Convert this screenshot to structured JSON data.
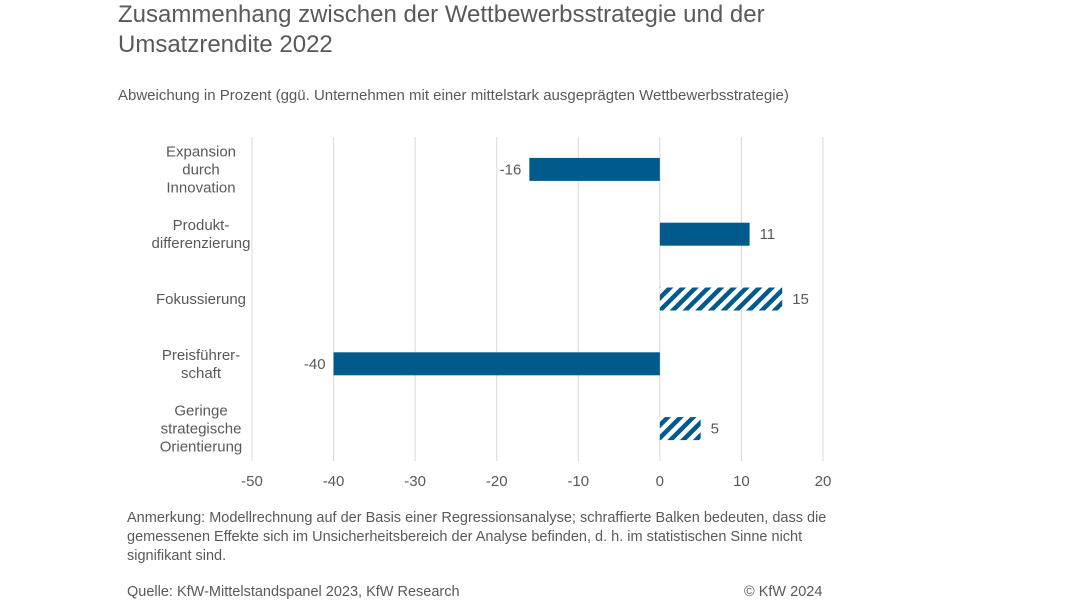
{
  "chart_data": {
    "type": "bar",
    "orientation": "horizontal",
    "title": "Zusammenhang zwischen der Wettbewerbsstrategie und der Umsatzrendite 2022",
    "subtitle": "Abweichung in Prozent (ggü. Unternehmen mit einer mittelstark ausgeprägten Wettbewerbsstrategie)",
    "categories": [
      [
        "Expansion",
        "durch",
        "Innovation"
      ],
      [
        "Produkt-",
        "differenzierung"
      ],
      [
        "Fokussierung"
      ],
      [
        "Preisführer-",
        "schaft"
      ],
      [
        "Geringe",
        "strategische",
        "Orientierung"
      ]
    ],
    "values": [
      -16,
      11,
      15,
      -40,
      5
    ],
    "value_labels": [
      "-16",
      "11",
      "15",
      "-40",
      "5"
    ],
    "significant": [
      true,
      true,
      false,
      true,
      false
    ],
    "xlim": [
      -50,
      20
    ],
    "xticks": [
      -50,
      -40,
      -30,
      -20,
      -10,
      0,
      10,
      20
    ],
    "xtick_labels": [
      "-50",
      "-40",
      "-30",
      "-20",
      "-10",
      "0",
      "10",
      "20"
    ],
    "grid": true,
    "bar_color": "#005a8c",
    "grid_color": "#d9d9d9"
  },
  "footer": {
    "note": "Anmerkung: Modellrechnung auf der Basis einer Regressionsanalyse; schraffierte Balken bedeuten, dass die gemessenen Effekte sich im Unsicherheitsbereich der Analyse befinden, d. h. im statistischen Sinne nicht signifikant sind.",
    "source": "Quelle: KfW-Mittelstandspanel 2023, KfW Research",
    "copyright": "© KfW 2024"
  }
}
